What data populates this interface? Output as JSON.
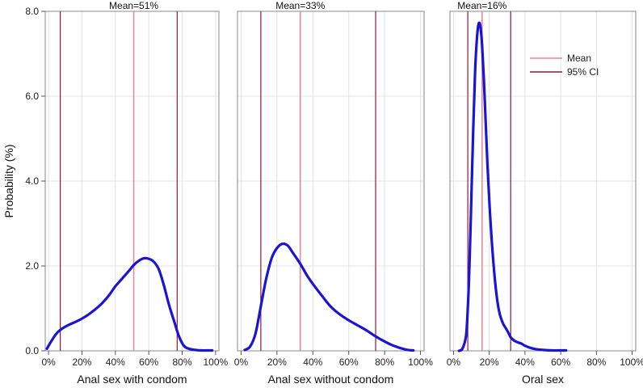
{
  "chart_data": {
    "type": "line",
    "ylabel": "Probability (%)",
    "ylim": [
      0,
      8.0
    ],
    "y_ticks": [
      0.0,
      2.0,
      4.0,
      6.0,
      8.0
    ],
    "y_tick_labels": [
      "0.0",
      "2.0",
      "4.0",
      "6.0",
      "8.0"
    ],
    "xlim": [
      -2,
      102
    ],
    "x_ticks": [
      0,
      20,
      40,
      60,
      80,
      100
    ],
    "x_tick_labels": [
      "0%",
      "20%",
      "40%",
      "60%",
      "80%",
      "100%"
    ],
    "grid": true,
    "legend": {
      "placement": "top-right",
      "entries": [
        {
          "label": "Mean",
          "color": "#e8899c"
        },
        {
          "label": "95% CI",
          "color": "#8b1a3a"
        }
      ]
    },
    "colors": {
      "density": "#1a14d4",
      "mean": "#e8899c",
      "ci": "#8b1a3a",
      "grid": "#e3e3e3",
      "frame": "#888888"
    },
    "panels": [
      {
        "xlabel": "Anal sex with condom",
        "mean_label": "Mean=51%",
        "mean": 51,
        "ci": [
          7,
          77
        ],
        "x": [
          -1,
          2,
          5,
          8,
          12,
          16,
          20,
          24,
          28,
          32,
          36,
          40,
          44,
          48,
          51,
          54,
          57,
          60,
          63,
          66,
          69,
          72,
          75,
          78,
          81,
          84,
          88,
          92,
          96,
          98
        ],
        "y": [
          0.05,
          0.25,
          0.42,
          0.52,
          0.61,
          0.68,
          0.76,
          0.86,
          0.98,
          1.12,
          1.3,
          1.52,
          1.7,
          1.88,
          2.02,
          2.12,
          2.18,
          2.17,
          2.1,
          1.92,
          1.55,
          1.1,
          0.72,
          0.35,
          0.12,
          0.05,
          0.02,
          0.01,
          0.01,
          0.01
        ]
      },
      {
        "xlabel": "Anal sex without condom",
        "mean_label": "Mean=33%",
        "mean": 33,
        "ci": [
          11,
          75
        ],
        "x": [
          2,
          5,
          8,
          11,
          14,
          17,
          20,
          23,
          26,
          29,
          33,
          37,
          41,
          45,
          50,
          55,
          60,
          65,
          70,
          75,
          80,
          85,
          90,
          93,
          96
        ],
        "y": [
          0.02,
          0.1,
          0.4,
          1.05,
          1.7,
          2.18,
          2.42,
          2.52,
          2.48,
          2.3,
          2.05,
          1.76,
          1.52,
          1.3,
          1.04,
          0.86,
          0.72,
          0.6,
          0.48,
          0.34,
          0.22,
          0.12,
          0.05,
          0.02,
          0.01
        ]
      },
      {
        "xlabel": "Oral sex",
        "mean_label": "Mean=16%",
        "mean": 16,
        "ci": [
          8,
          32
        ],
        "x": [
          3,
          5,
          7,
          8,
          9,
          10,
          11,
          12,
          13,
          14,
          15,
          16,
          17,
          18,
          19,
          20,
          21,
          22,
          23,
          24,
          25,
          26,
          27,
          28,
          29,
          30,
          31,
          32,
          34,
          36,
          38,
          40,
          43,
          46,
          50,
          55,
          60,
          63
        ],
        "y": [
          0.0,
          0.05,
          0.35,
          1.0,
          2.1,
          3.6,
          5.2,
          6.5,
          7.3,
          7.7,
          7.65,
          7.2,
          6.4,
          5.4,
          4.4,
          3.55,
          2.85,
          2.25,
          1.75,
          1.35,
          1.05,
          0.85,
          0.72,
          0.62,
          0.55,
          0.48,
          0.4,
          0.32,
          0.24,
          0.2,
          0.17,
          0.12,
          0.07,
          0.04,
          0.02,
          0.01,
          0.01,
          0.01
        ]
      }
    ]
  }
}
